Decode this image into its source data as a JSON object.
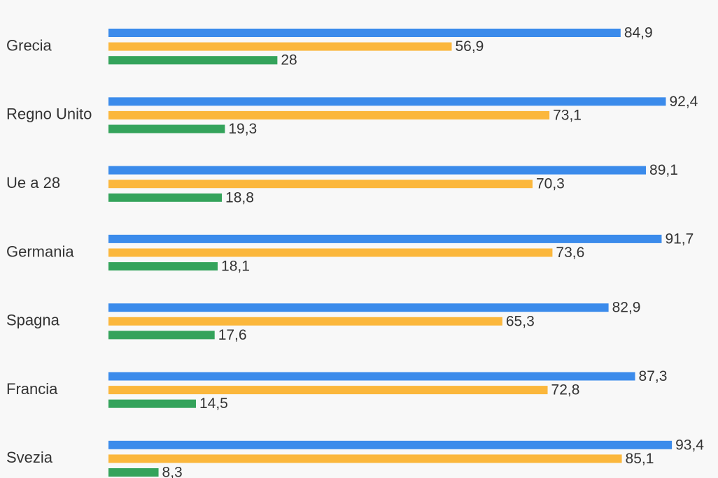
{
  "chart_data": {
    "type": "bar",
    "orientation": "horizontal",
    "categories": [
      "Grecia",
      "Regno Unito",
      "Ue a 28",
      "Germania",
      "Spagna",
      "Francia",
      "Svezia"
    ],
    "series": [
      {
        "color": "#3b8beb",
        "values": [
          84.9,
          92.4,
          89.1,
          91.7,
          82.9,
          87.3,
          93.4
        ],
        "labels": [
          "84,9",
          "92,4",
          "89,1",
          "91,7",
          "82,9",
          "87,3",
          "93,4"
        ]
      },
      {
        "color": "#fbb73c",
        "values": [
          56.9,
          73.1,
          70.3,
          73.6,
          65.3,
          72.8,
          85.1
        ],
        "labels": [
          "56,9",
          "73,1",
          "70,3",
          "73,6",
          "65,3",
          "72,8",
          "85,1"
        ]
      },
      {
        "color": "#34a35b",
        "values": [
          28,
          19.3,
          18.8,
          18.1,
          17.6,
          14.5,
          8.3
        ],
        "labels": [
          "28",
          "19,3",
          "18,8",
          "18,1",
          "17,6",
          "14,5",
          "8,3"
        ]
      }
    ],
    "xlim": [
      0,
      100
    ],
    "grid": false,
    "legend": "none"
  }
}
